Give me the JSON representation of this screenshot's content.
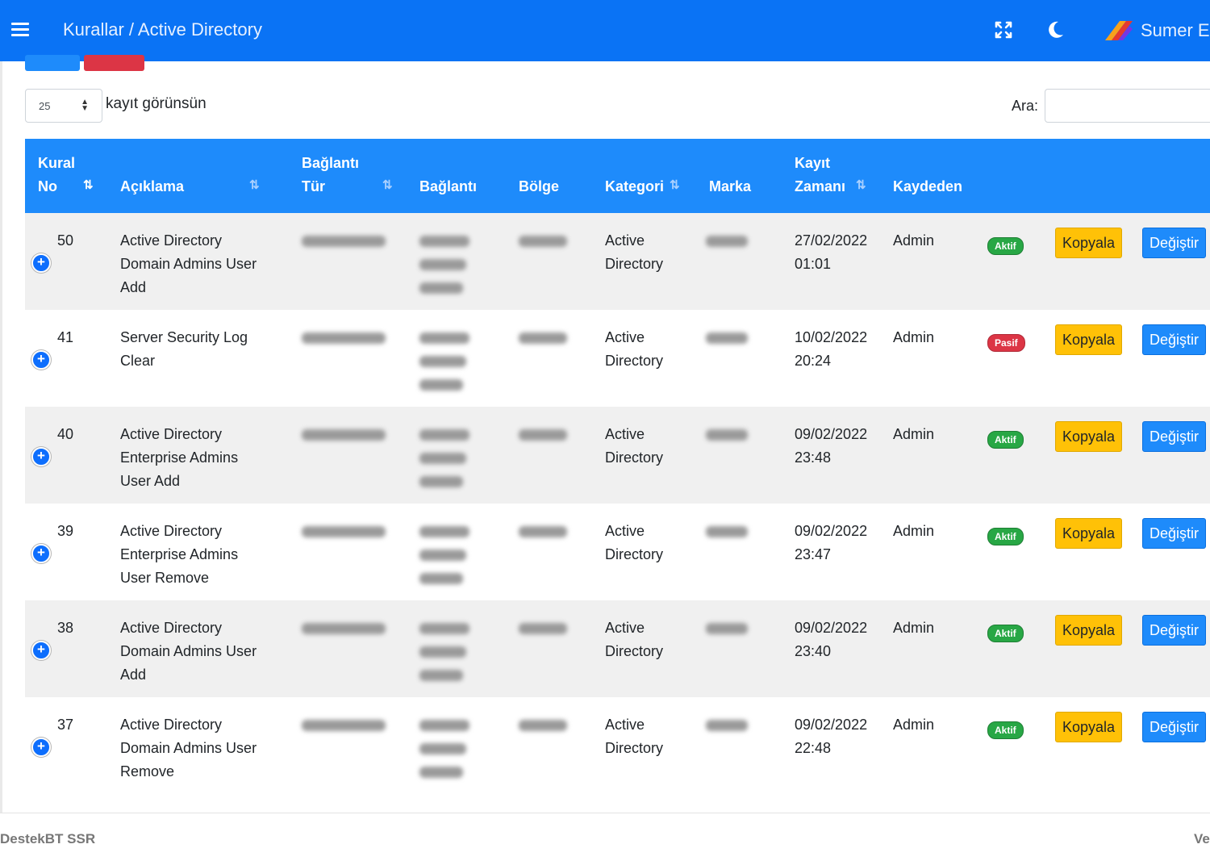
{
  "header": {
    "breadcrumb": "Kurallar / Active Directory",
    "user_name": "Sumer Es",
    "icons": [
      "hamburger-menu-icon",
      "fullscreen-icon",
      "moon-icon",
      "user-logo-icon"
    ]
  },
  "controls": {
    "length_value": "25",
    "length_label": "kayıt görünsün",
    "search_label": "Ara:",
    "search_value": "",
    "search_placeholder": ""
  },
  "table": {
    "headers": {
      "kural_no": [
        "Kural",
        "No"
      ],
      "aciklama": "Açıklama",
      "baglanti_tur": [
        "Bağlantı",
        "Tür"
      ],
      "baglanti": "Bağlantı",
      "bolge": "Bölge",
      "kategori": "Kategori",
      "marka": "Marka",
      "kayit_zamani": [
        "Kayıt",
        "Zamanı"
      ],
      "kaydeden": "Kaydeden"
    },
    "rows": [
      {
        "no": "50",
        "aciklama": [
          "Active Directory",
          "Domain Admins User",
          "Add"
        ],
        "kategori": [
          "Active",
          "Directory"
        ],
        "date": "27/02/2022",
        "time": "01:01",
        "kaydeden": "Admin",
        "status": "Aktif",
        "copy": "Kopyala",
        "edit": "Değiştir"
      },
      {
        "no": "41",
        "aciklama": [
          "Server Security Log",
          "Clear"
        ],
        "kategori": [
          "Active",
          "Directory"
        ],
        "date": "10/02/2022",
        "time": "20:24",
        "kaydeden": "Admin",
        "status": "Pasif",
        "copy": "Kopyala",
        "edit": "Değiştir"
      },
      {
        "no": "40",
        "aciklama": [
          "Active Directory",
          "Enterprise Admins",
          "User Add"
        ],
        "kategori": [
          "Active",
          "Directory"
        ],
        "date": "09/02/2022",
        "time": "23:48",
        "kaydeden": "Admin",
        "status": "Aktif",
        "copy": "Kopyala",
        "edit": "Değiştir"
      },
      {
        "no": "39",
        "aciklama": [
          "Active Directory",
          "Enterprise Admins",
          "User Remove"
        ],
        "kategori": [
          "Active",
          "Directory"
        ],
        "date": "09/02/2022",
        "time": "23:47",
        "kaydeden": "Admin",
        "status": "Aktif",
        "copy": "Kopyala",
        "edit": "Değiştir"
      },
      {
        "no": "38",
        "aciklama": [
          "Active Directory",
          "Domain Admins User",
          "Add"
        ],
        "kategori": [
          "Active",
          "Directory"
        ],
        "date": "09/02/2022",
        "time": "23:40",
        "kaydeden": "Admin",
        "status": "Aktif",
        "copy": "Kopyala",
        "edit": "Değiştir"
      },
      {
        "no": "37",
        "aciklama": [
          "Active Directory",
          "Domain Admins User",
          "Remove"
        ],
        "kategori": [
          "Active",
          "Directory"
        ],
        "date": "09/02/2022",
        "time": "22:48",
        "kaydeden": "Admin",
        "status": "Aktif",
        "copy": "Kopyala",
        "edit": "Değiştir"
      }
    ]
  },
  "footer": {
    "left": "DestekBT SSR",
    "right": "Ve"
  },
  "colors": {
    "navbar": "#0a73f5",
    "table_header": "#1e8bfb",
    "aktif": "#28a745",
    "pasif": "#dc3545",
    "kopyala": "#ffc107",
    "degistir": "#1e8bfb"
  }
}
